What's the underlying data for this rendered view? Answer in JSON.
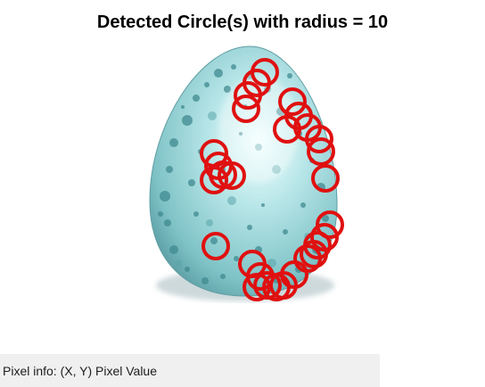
{
  "figure": {
    "title": "Detected Circle(s) with radius = 10"
  },
  "image": {
    "subject": "speckled teal egg",
    "egg_color": "#8fd0d3",
    "egg_highlight": "#e8fbfb",
    "speckle_color": "#3f8a90",
    "shadow_color": "#6e8f95",
    "circle_color": "#e01010"
  },
  "detected_circles": {
    "radius": 10,
    "count": 29
  },
  "status_bar": {
    "pixel_info": "Pixel info: (X, Y)  Pixel Value",
    "background": "#f0f0f0"
  }
}
